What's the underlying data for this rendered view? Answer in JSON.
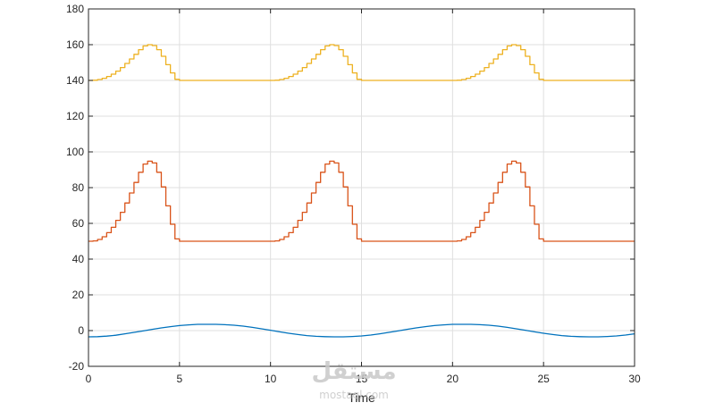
{
  "chart_data": {
    "type": "line",
    "xlabel": "Time",
    "ylabel": "",
    "title": "",
    "xlim": [
      0,
      30
    ],
    "ylim": [
      -20,
      180
    ],
    "x_ticks": [
      0,
      5,
      10,
      15,
      20,
      25,
      30
    ],
    "y_ticks": [
      -20,
      0,
      20,
      40,
      60,
      80,
      100,
      120,
      140,
      160,
      180
    ],
    "grid": true,
    "legend": "none",
    "series": [
      {
        "color": "#EDB120",
        "style": "stairs",
        "step": 0.25,
        "x": [
          0,
          0.25,
          0.5,
          0.75,
          1.0,
          1.25,
          1.5,
          1.75,
          2.0,
          2.25,
          2.5,
          2.75,
          3.0,
          3.25,
          3.5,
          3.75,
          4.0,
          4.25,
          4.5,
          4.75,
          5.0,
          10.0,
          10.25,
          10.5,
          10.75,
          11.0,
          11.25,
          11.5,
          11.75,
          12.0,
          12.25,
          12.5,
          12.75,
          13.0,
          13.25,
          13.5,
          13.75,
          14.0,
          14.25,
          14.5,
          14.75,
          15.0,
          20.0,
          20.25,
          20.5,
          20.75,
          21.0,
          21.25,
          21.5,
          21.75,
          22.0,
          22.25,
          22.5,
          22.75,
          23.0,
          23.25,
          23.5,
          23.75,
          24.0,
          24.25,
          24.5,
          24.75,
          25.0,
          30.0
        ],
        "y": [
          140,
          140.1,
          140.5,
          141.2,
          142.2,
          143.5,
          145.2,
          147.2,
          149.5,
          152.0,
          154.6,
          157.2,
          159.3,
          160.0,
          159.5,
          157.2,
          153.5,
          148.8,
          144.2,
          140.6,
          140,
          140,
          140.1,
          140.5,
          141.2,
          142.2,
          143.5,
          145.2,
          147.2,
          149.5,
          152.0,
          154.6,
          157.2,
          159.3,
          160.0,
          159.5,
          157.2,
          153.5,
          148.8,
          144.2,
          140.6,
          140,
          140,
          140.1,
          140.5,
          141.2,
          142.2,
          143.5,
          145.2,
          147.2,
          149.5,
          152.0,
          154.6,
          157.2,
          159.3,
          160.0,
          159.5,
          157.2,
          153.5,
          148.8,
          144.2,
          140.6,
          140,
          140
        ]
      },
      {
        "color": "#D95319",
        "style": "stairs",
        "step": 0.25,
        "x": [
          0,
          0.25,
          0.5,
          0.75,
          1.0,
          1.25,
          1.5,
          1.75,
          2.0,
          2.25,
          2.5,
          2.75,
          3.0,
          3.25,
          3.5,
          3.75,
          4.0,
          4.25,
          4.5,
          4.75,
          5.0,
          10.0,
          10.25,
          10.5,
          10.75,
          11.0,
          11.25,
          11.5,
          11.75,
          12.0,
          12.25,
          12.5,
          12.75,
          13.0,
          13.25,
          13.5,
          13.75,
          14.0,
          14.25,
          14.5,
          14.75,
          15.0,
          20.0,
          20.25,
          20.5,
          20.75,
          21.0,
          21.25,
          21.5,
          21.75,
          22.0,
          22.25,
          22.5,
          22.75,
          23.0,
          23.25,
          23.5,
          23.75,
          24.0,
          24.25,
          24.5,
          24.75,
          25.0,
          30.0
        ],
        "y": [
          50,
          50.2,
          51.0,
          52.5,
          54.8,
          57.8,
          61.7,
          66.2,
          71.4,
          77.0,
          82.9,
          88.6,
          93.2,
          94.8,
          93.8,
          88.6,
          80.4,
          69.8,
          59.5,
          51.3,
          50,
          50,
          50.2,
          51.0,
          52.5,
          54.8,
          57.8,
          61.7,
          66.2,
          71.4,
          77.0,
          82.9,
          88.6,
          93.2,
          94.8,
          93.8,
          88.6,
          80.4,
          69.8,
          59.5,
          51.3,
          50,
          50,
          50.2,
          51.0,
          52.5,
          54.8,
          57.8,
          61.7,
          66.2,
          71.4,
          77.0,
          82.9,
          88.6,
          93.2,
          94.8,
          93.8,
          88.6,
          80.4,
          69.8,
          59.5,
          51.3,
          50,
          50
        ]
      },
      {
        "color": "#0072BD",
        "style": "line",
        "x": [
          0,
          0.5,
          1,
          1.5,
          2,
          2.5,
          3,
          3.5,
          4,
          4.5,
          5,
          5.5,
          6,
          6.5,
          7,
          7.5,
          8,
          8.5,
          9,
          9.5,
          10,
          10.5,
          11,
          11.5,
          12,
          12.5,
          13,
          13.5,
          14,
          14.5,
          15,
          15.5,
          16,
          16.5,
          17,
          17.5,
          18,
          18.5,
          19,
          19.5,
          20,
          20.5,
          21,
          21.5,
          22,
          22.5,
          23,
          23.5,
          24,
          24.5,
          25,
          25.5,
          26,
          26.5,
          27,
          27.5,
          28,
          28.5,
          29,
          29.5,
          30
        ],
        "y": [
          -3.5,
          -3.4,
          -3.1,
          -2.6,
          -1.8,
          -1.0,
          -0.2,
          0.7,
          1.5,
          2.2,
          2.8,
          3.2,
          3.5,
          3.5,
          3.5,
          3.3,
          3.0,
          2.5,
          1.8,
          1.0,
          0.2,
          -0.7,
          -1.5,
          -2.2,
          -2.8,
          -3.2,
          -3.4,
          -3.5,
          -3.5,
          -3.3,
          -3.0,
          -2.5,
          -1.8,
          -1.0,
          -0.2,
          0.7,
          1.5,
          2.2,
          2.8,
          3.2,
          3.5,
          3.5,
          3.5,
          3.3,
          3.0,
          2.5,
          1.8,
          1.0,
          0.2,
          -0.7,
          -1.5,
          -2.2,
          -2.8,
          -3.2,
          -3.4,
          -3.5,
          -3.5,
          -3.3,
          -3.0,
          -2.5,
          -1.8
        ]
      }
    ]
  },
  "watermark": {
    "logo_text": "مستقل",
    "site_text": "mostaql.com"
  }
}
